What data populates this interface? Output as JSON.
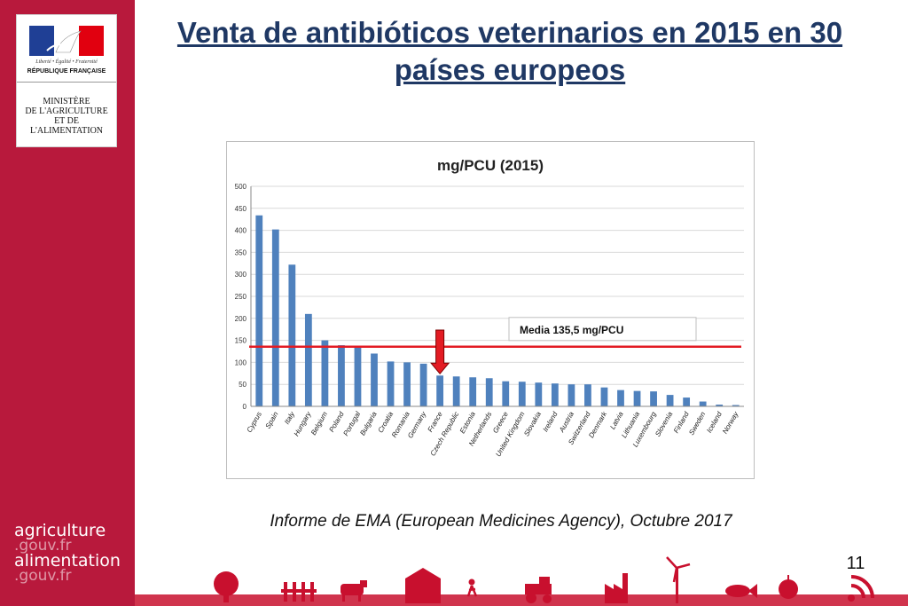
{
  "slide": {
    "title": "Venta de antibióticos veterinarios en 2015 en 30 países europeos",
    "source_note": "Informe de EMA (European Medicines Agency), Octubre 2017",
    "page_number": "11"
  },
  "logo": {
    "motto": "Liberté • Égalité • Fraternité",
    "republique": "RÉPUBLIQUE FRANÇAISE",
    "ministry": "MINISTÈRE\nDE L'AGRICULTURE\nET DE\nL'ALIMENTATION"
  },
  "brand": {
    "line1": "agriculture",
    "line2": ".gouv.fr",
    "line3": "alimentation",
    "line4": ".gouv.fr"
  },
  "colors": {
    "sidebar": "#b8193c",
    "bar": "#4f81bd",
    "mean_line": "#e31b23",
    "title": "#1f3864",
    "footer_icons": "#c8102e"
  },
  "chart_data": {
    "type": "bar",
    "title": "mg/PCU (2015)",
    "xlabel": "",
    "ylabel": "",
    "ylim": [
      0,
      500
    ],
    "yticks": [
      0,
      50,
      100,
      150,
      200,
      250,
      300,
      350,
      400,
      450,
      500
    ],
    "grid": true,
    "categories": [
      "Cyprus",
      "Spain",
      "Italy",
      "Hungary",
      "Belgium",
      "Poland",
      "Portugal",
      "Bulgaria",
      "Croatia",
      "Romania",
      "Germany",
      "France",
      "Czech Republic",
      "Estonia",
      "Netherlands",
      "Greece",
      "United Kingdom",
      "Slovakia",
      "Ireland",
      "Austria",
      "Switzerland",
      "Denmark",
      "Latvia",
      "Lithuania",
      "Luxembourg",
      "Slovenia",
      "Finland",
      "Sweden",
      "Iceland",
      "Norway"
    ],
    "values": [
      434,
      402,
      322,
      210,
      150,
      139,
      134,
      120,
      102,
      100,
      97,
      70,
      68,
      66,
      64,
      57,
      56,
      54,
      52,
      50,
      50,
      43,
      37,
      35,
      34,
      26,
      20,
      11,
      4,
      3
    ],
    "mean": {
      "value": 135.5,
      "label": "Media 135,5 mg/PCU"
    },
    "highlight": {
      "category": "France",
      "marker": "arrow"
    }
  }
}
